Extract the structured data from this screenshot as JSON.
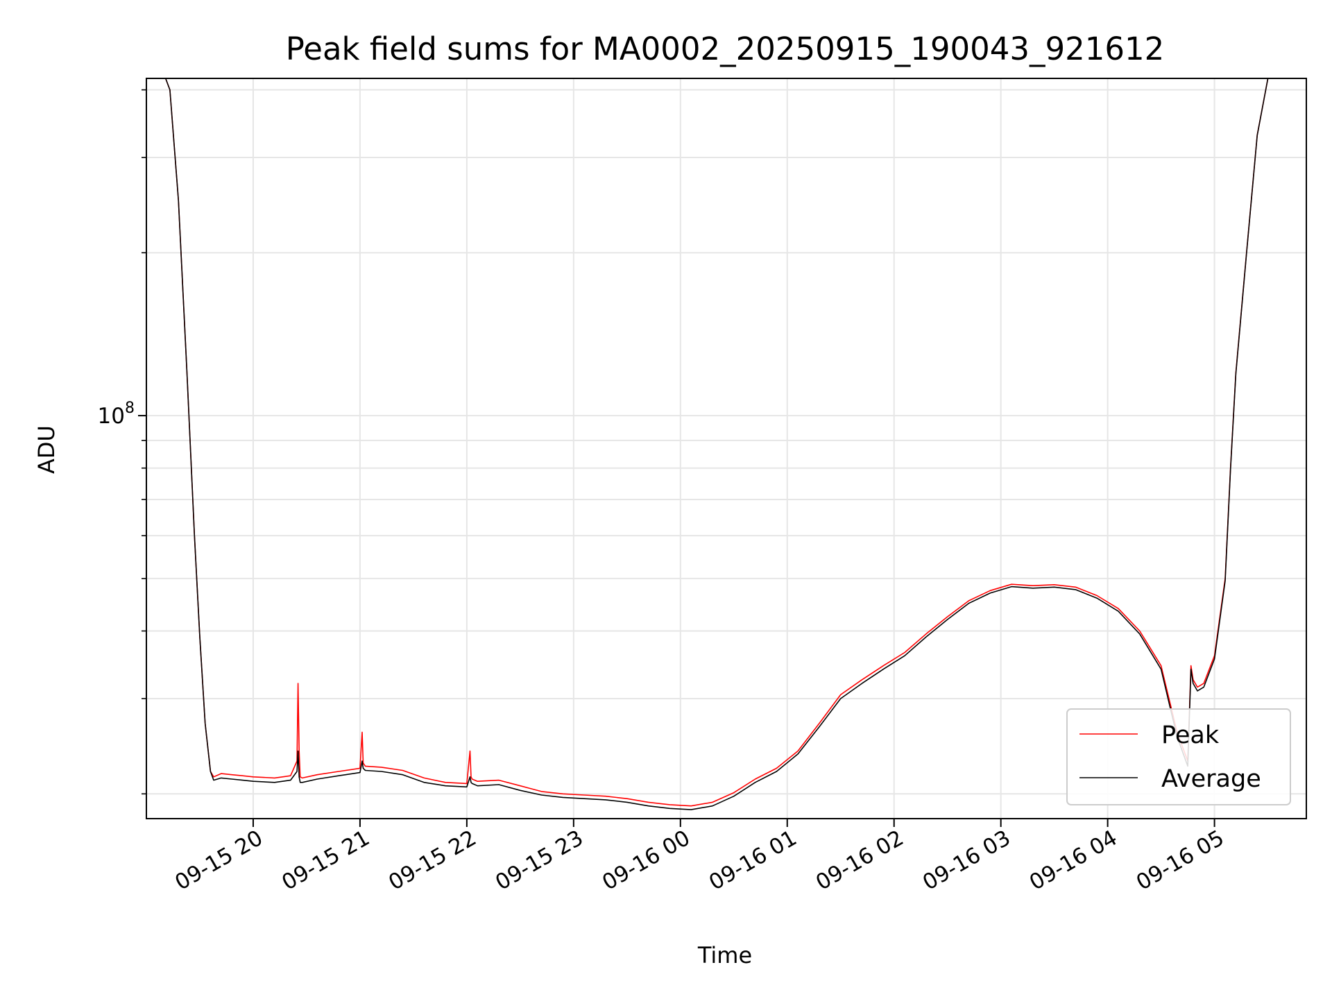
{
  "chart_data": {
    "type": "line",
    "title": "Peak field sums for MA0002_20250915_190043_921612",
    "xlabel": "Time",
    "ylabel": "ADU",
    "yscale": "log",
    "ylim": [
      18000000,
      420000000
    ],
    "xlim_hours": [
      19.0,
      29.86
    ],
    "grid": true,
    "legend_position": "lower-right",
    "y_major_ticks": [
      {
        "value": 100000000,
        "base": "10",
        "exp": "8"
      }
    ],
    "y_minor_ticks": [
      20000000,
      30000000,
      40000000,
      50000000,
      60000000,
      70000000,
      80000000,
      90000000,
      200000000,
      300000000,
      400000000
    ],
    "x_ticks": [
      {
        "hour": 20,
        "label": "09-15 20"
      },
      {
        "hour": 21,
        "label": "09-15 21"
      },
      {
        "hour": 22,
        "label": "09-15 22"
      },
      {
        "hour": 23,
        "label": "09-15 23"
      },
      {
        "hour": 24,
        "label": "09-16 00"
      },
      {
        "hour": 25,
        "label": "09-16 01"
      },
      {
        "hour": 26,
        "label": "09-16 02"
      },
      {
        "hour": 27,
        "label": "09-16 03"
      },
      {
        "hour": 28,
        "label": "09-16 04"
      },
      {
        "hour": 29,
        "label": "09-16 05"
      }
    ],
    "x_units": "hours since 09-15 00:00",
    "series": [
      {
        "name": "Peak",
        "color": "#ff0000",
        "x": [
          19.0,
          19.18,
          19.22,
          19.3,
          19.38,
          19.45,
          19.5,
          19.55,
          19.6,
          19.63,
          19.7,
          19.8,
          19.9,
          20.0,
          20.2,
          20.35,
          20.41,
          20.42,
          20.43,
          20.44,
          20.46,
          20.6,
          20.8,
          21.0,
          21.02,
          21.03,
          21.05,
          21.2,
          21.4,
          21.6,
          21.8,
          22.0,
          22.03,
          22.04,
          22.05,
          22.1,
          22.3,
          22.5,
          22.7,
          22.9,
          23.1,
          23.3,
          23.5,
          23.7,
          23.9,
          24.1,
          24.3,
          24.5,
          24.7,
          24.9,
          25.1,
          25.3,
          25.5,
          25.7,
          25.9,
          26.1,
          26.3,
          26.5,
          26.7,
          26.9,
          27.1,
          27.3,
          27.5,
          27.7,
          27.9,
          28.1,
          28.3,
          28.5,
          28.65,
          28.75,
          28.78,
          28.8,
          28.82,
          28.84,
          28.9,
          29.0,
          29.1,
          29.15,
          29.2,
          29.3,
          29.4,
          29.5,
          29.6,
          29.7,
          29.86
        ],
        "y": [
          420000000,
          420000000,
          400000000,
          250000000,
          120000000,
          60000000,
          39000000,
          27000000,
          22000000,
          21500000,
          21800000,
          21700000,
          21600000,
          21500000,
          21400000,
          21600000,
          23000000,
          32000000,
          24000000,
          21500000,
          21400000,
          21700000,
          22000000,
          22300000,
          26000000,
          22800000,
          22500000,
          22400000,
          22100000,
          21400000,
          21000000,
          20900000,
          24000000,
          21500000,
          21300000,
          21100000,
          21200000,
          20700000,
          20200000,
          20000000,
          19900000,
          19800000,
          19600000,
          19300000,
          19100000,
          19000000,
          19300000,
          20100000,
          21300000,
          22300000,
          24000000,
          27000000,
          30500000,
          32500000,
          34500000,
          36500000,
          39500000,
          42500000,
          45500000,
          47500000,
          48800000,
          48500000,
          48700000,
          48200000,
          46500000,
          44000000,
          40000000,
          34500000,
          26000000,
          23000000,
          34500000,
          32500000,
          32000000,
          31500000,
          32000000,
          36000000,
          50000000,
          80000000,
          120000000,
          200000000,
          330000000,
          420000000,
          420000000,
          420000000,
          420000000
        ]
      },
      {
        "name": "Average",
        "color": "#000000",
        "x": [
          19.0,
          19.18,
          19.22,
          19.3,
          19.38,
          19.45,
          19.5,
          19.55,
          19.6,
          19.63,
          19.7,
          19.8,
          19.9,
          20.0,
          20.2,
          20.35,
          20.41,
          20.42,
          20.43,
          20.44,
          20.46,
          20.6,
          20.8,
          21.0,
          21.02,
          21.03,
          21.05,
          21.2,
          21.4,
          21.6,
          21.8,
          22.0,
          22.03,
          22.04,
          22.05,
          22.1,
          22.3,
          22.5,
          22.7,
          22.9,
          23.1,
          23.3,
          23.5,
          23.7,
          23.9,
          24.1,
          24.3,
          24.5,
          24.7,
          24.9,
          25.1,
          25.3,
          25.5,
          25.7,
          25.9,
          26.1,
          26.3,
          26.5,
          26.7,
          26.9,
          27.1,
          27.3,
          27.5,
          27.7,
          27.9,
          28.1,
          28.3,
          28.5,
          28.65,
          28.75,
          28.78,
          28.8,
          28.82,
          28.84,
          28.9,
          29.0,
          29.1,
          29.15,
          29.2,
          29.3,
          29.4,
          29.5,
          29.6,
          29.7,
          29.86
        ],
        "y": [
          420000000,
          420000000,
          400000000,
          250000000,
          120000000,
          60000000,
          39000000,
          27000000,
          22000000,
          21200000,
          21400000,
          21300000,
          21200000,
          21100000,
          21000000,
          21200000,
          22000000,
          24000000,
          21500000,
          21000000,
          21000000,
          21300000,
          21600000,
          21900000,
          23000000,
          22300000,
          22100000,
          22000000,
          21700000,
          21000000,
          20700000,
          20600000,
          21500000,
          21000000,
          20900000,
          20700000,
          20800000,
          20300000,
          19900000,
          19700000,
          19600000,
          19500000,
          19300000,
          19000000,
          18800000,
          18700000,
          19000000,
          19800000,
          21000000,
          22000000,
          23700000,
          26600000,
          30000000,
          32000000,
          34000000,
          36000000,
          39000000,
          42000000,
          45000000,
          47000000,
          48300000,
          48000000,
          48200000,
          47700000,
          46000000,
          43500000,
          39500000,
          34000000,
          25500000,
          22500000,
          34000000,
          32000000,
          31500000,
          31000000,
          31500000,
          35500000,
          49500000,
          79500000,
          119500000,
          199500000,
          329500000,
          420000000,
          420000000,
          420000000,
          420000000
        ]
      }
    ]
  }
}
